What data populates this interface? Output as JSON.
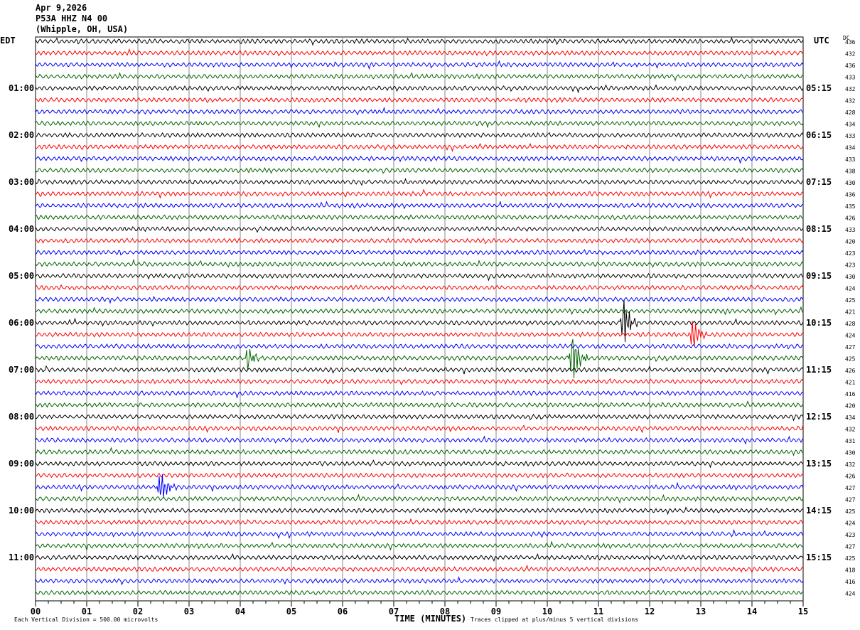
{
  "header": {
    "date": "Apr 9,2026",
    "station": "P53A HHZ N4 00",
    "location": "(Whipple, OH, USA)"
  },
  "left_tz": "EDT",
  "right_tz": "UTC",
  "dc_label": "DC",
  "footer": {
    "scale": "Each Vertical Division =  500.00 microvolts",
    "xlabel": "TIME (MINUTES)",
    "clip": "Traces clipped at plus/minus 5 vertical divisions"
  },
  "chart_data": {
    "type": "line",
    "title": "P53A HHZ N4 00 helicorder",
    "xlabel": "TIME (MINUTES)",
    "xlim": [
      0,
      15
    ],
    "x_ticks": [
      "00",
      "01",
      "02",
      "03",
      "04",
      "05",
      "06",
      "07",
      "08",
      "09",
      "10",
      "11",
      "12",
      "13",
      "14",
      "15"
    ],
    "trace_count": 48,
    "trace_colors": [
      "#000000",
      "#ff0000",
      "#0000ff",
      "#006400"
    ],
    "left_labels": [
      "01:00",
      "02:00",
      "03:00",
      "04:00",
      "05:00",
      "06:00",
      "07:00",
      "08:00",
      "09:00",
      "10:00",
      "11:00"
    ],
    "right_labels": [
      "05:15",
      "06:15",
      "07:15",
      "08:15",
      "09:15",
      "10:15",
      "11:15",
      "12:15",
      "13:15",
      "14:15",
      "15:15"
    ],
    "dc_values": [
      "436",
      "432",
      "436",
      "433",
      "432",
      "432",
      "428",
      "434",
      "433",
      "434",
      "433",
      "438",
      "430",
      "436",
      "435",
      "426",
      "433",
      "420",
      "423",
      "423",
      "430",
      "424",
      "425",
      "421",
      "428",
      "424",
      "427",
      "425",
      "426",
      "421",
      "416",
      "420",
      "434",
      "432",
      "431",
      "430",
      "432",
      "426",
      "427",
      "427",
      "425",
      "424",
      "423",
      "427",
      "425",
      "418",
      "416",
      "424"
    ],
    "events": [
      {
        "trace": 24,
        "minute": 11.5,
        "amplitude": 2.2
      },
      {
        "trace": 25,
        "minute": 12.85,
        "amplitude": 1.6
      },
      {
        "trace": 27,
        "minute": 4.15,
        "amplitude": 1.0
      },
      {
        "trace": 27,
        "minute": 10.5,
        "amplitude": 2.2
      },
      {
        "trace": 38,
        "minute": 2.45,
        "amplitude": 1.6
      }
    ]
  }
}
